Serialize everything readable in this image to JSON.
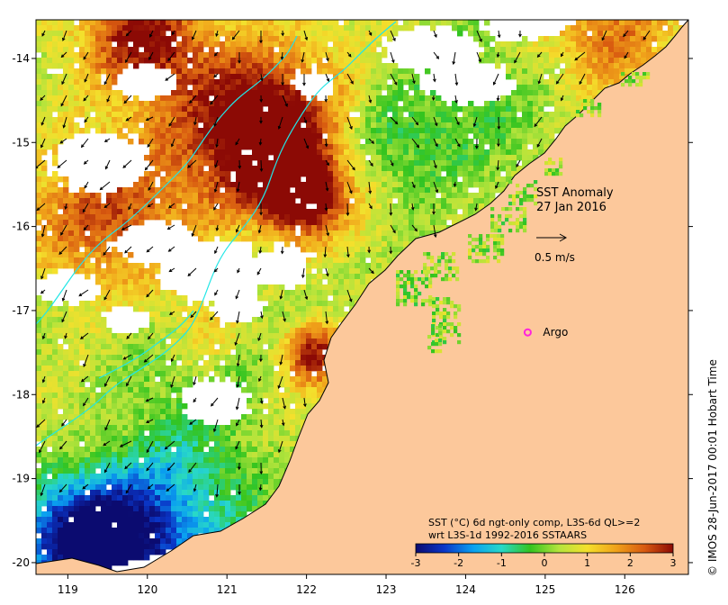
{
  "title": {
    "line1": "SST Anomaly",
    "line2": "27 Jan 2016"
  },
  "vector_scale": {
    "label": "0.5 m/s",
    "value_m_s": 0.5
  },
  "argo": {
    "label": "Argo",
    "lon": 124.78,
    "lat": -17.26,
    "color": "#ff22dd"
  },
  "colorbar": {
    "line1": "SST (°C) 6d ngt-only comp, L3S-6d QL>=2",
    "line2": "wrt L3S-1d 1992-2016 SSTAARS",
    "min": -3,
    "max": 3,
    "ticks": [
      "-3",
      "-2",
      "-1",
      "0",
      "1",
      "2",
      "3"
    ],
    "colors": [
      "#0b0b70",
      "#0a36c8",
      "#0aa0f0",
      "#28d8c8",
      "#33c41f",
      "#b4e43c",
      "#f4e02c",
      "#f0a21a",
      "#d85a10",
      "#8c0a05"
    ]
  },
  "credit": "© IMOS 28-Jun-2017 00:01 Hobart Time",
  "axes": {
    "lon_min": 118.6,
    "lon_max": 126.8,
    "lat_min": -20.14,
    "lat_max": -13.54,
    "lon_ticks": [
      "119",
      "120",
      "121",
      "122",
      "123",
      "124",
      "125",
      "126"
    ],
    "lat_ticks": [
      "-14",
      "-15",
      "-16",
      "-17",
      "-18",
      "-19",
      "-20"
    ]
  },
  "colors": {
    "land": "#fcc89b",
    "coast": "#000000",
    "bathy_contour": "#22e6e6",
    "nodata": "#ffffff"
  }
}
